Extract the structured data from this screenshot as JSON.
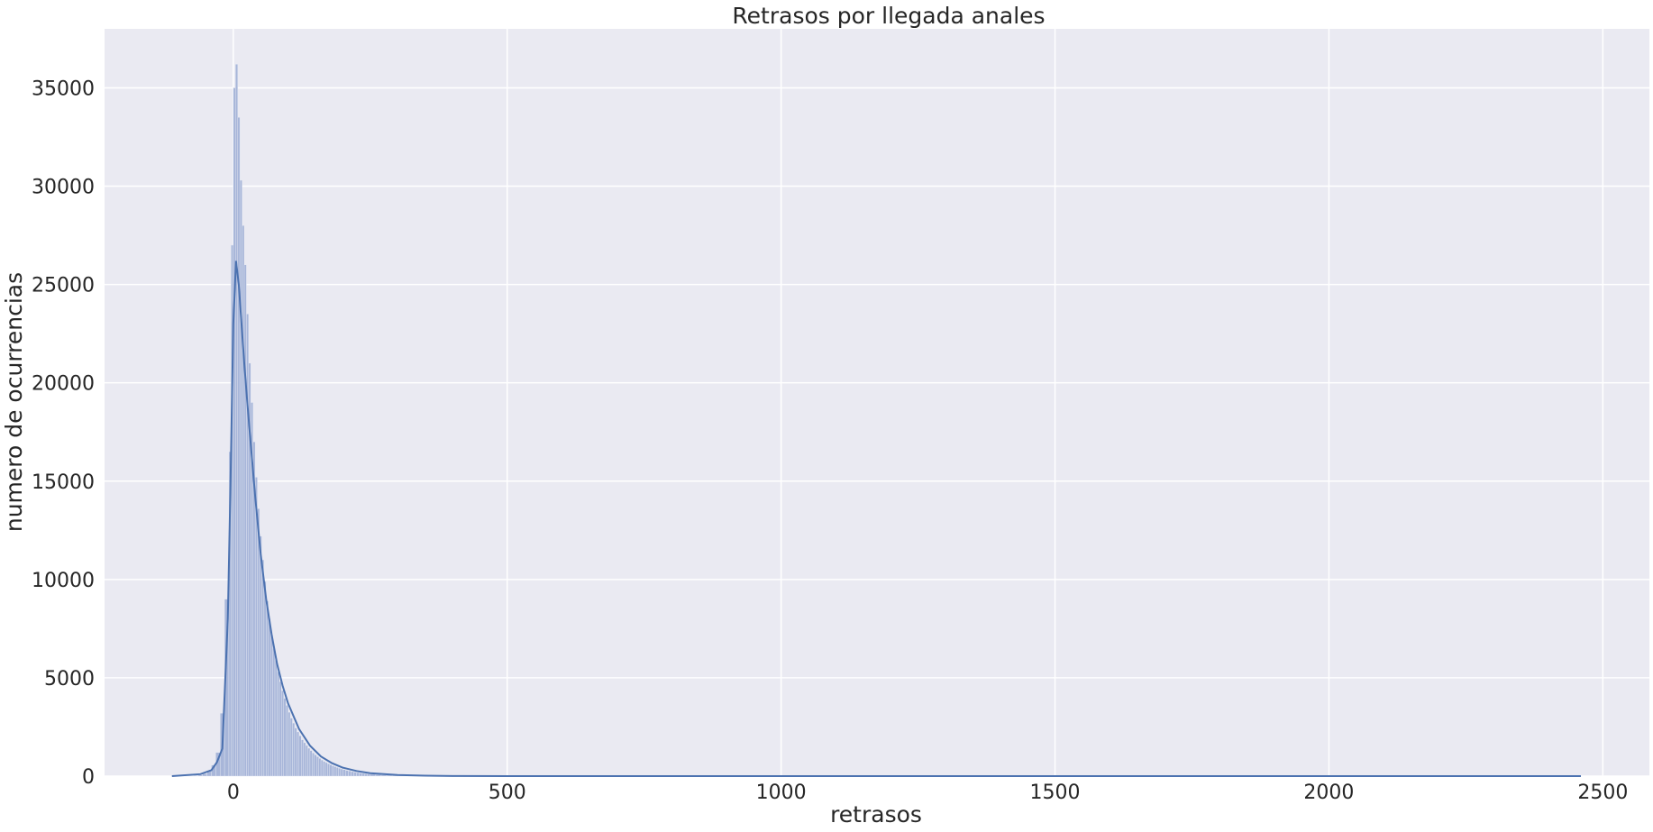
{
  "chart_data": {
    "type": "histogram",
    "title": "Retrasos por llegada anales",
    "xlabel": "retrasos",
    "ylabel": "numero de ocurrencias",
    "xlim": [
      -235,
      2585
    ],
    "ylim": [
      0,
      38000
    ],
    "xticks": [
      0,
      500,
      1000,
      1500,
      2000,
      2500
    ],
    "yticks": [
      0,
      5000,
      10000,
      15000,
      20000,
      25000,
      30000,
      35000
    ],
    "grid": true,
    "legend": "none",
    "colors": {
      "background": "#eaeaf2",
      "grid": "#ffffff",
      "bars": "#a8b6d9",
      "bar_edge": "#e6eaf4",
      "kde": "#4c72b0"
    },
    "bins": {
      "x": [
        -112,
        -104,
        -96,
        -88,
        -80,
        -72,
        -64,
        -56,
        -48,
        -40,
        -32,
        -24,
        -16,
        -8,
        -4,
        0,
        4,
        8,
        12,
        16,
        20,
        24,
        28,
        32,
        36,
        40,
        44,
        48,
        52,
        56,
        60,
        64,
        68,
        72,
        76,
        80,
        84,
        88,
        92,
        96,
        100,
        104,
        108,
        112,
        116,
        120,
        124,
        128,
        132,
        136,
        140,
        144,
        148,
        152,
        156,
        160,
        164,
        168,
        172,
        176,
        180,
        184,
        188,
        192,
        196,
        200,
        205,
        210,
        215,
        220,
        225,
        230,
        235,
        240,
        245,
        250,
        260,
        270,
        280,
        290,
        300,
        320,
        340,
        360,
        380,
        400,
        430,
        460,
        500,
        560,
        640
      ],
      "counts": [
        2,
        3,
        5,
        8,
        15,
        30,
        60,
        120,
        260,
        560,
        1200,
        3200,
        9000,
        16500,
        27000,
        35000,
        36200,
        33500,
        30300,
        28000,
        26000,
        23500,
        21000,
        19000,
        17000,
        15200,
        13600,
        12200,
        11000,
        9900,
        8900,
        8000,
        7200,
        6500,
        5900,
        5300,
        4800,
        4350,
        3950,
        3600,
        3250,
        2950,
        2700,
        2450,
        2250,
        2050,
        1850,
        1700,
        1560,
        1420,
        1300,
        1180,
        1080,
        990,
        900,
        820,
        750,
        690,
        630,
        575,
        525,
        480,
        440,
        400,
        365,
        330,
        290,
        260,
        230,
        205,
        180,
        160,
        142,
        126,
        112,
        100,
        80,
        64,
        51,
        41,
        33,
        20,
        12,
        8,
        5,
        3,
        2,
        1,
        1,
        1,
        1
      ]
    },
    "kde": {
      "x": [
        -112,
        -60,
        -40,
        -30,
        -20,
        -10,
        -5,
        0,
        5,
        10,
        15,
        20,
        25,
        30,
        40,
        50,
        60,
        70,
        80,
        90,
        100,
        120,
        140,
        160,
        180,
        200,
        225,
        250,
        300,
        350,
        400,
        500,
        700,
        1000,
        1500,
        2000,
        2460
      ],
      "y": [
        0,
        100,
        300,
        700,
        1400,
        8000,
        15000,
        23000,
        26200,
        25000,
        23000,
        21000,
        19200,
        17500,
        14200,
        11300,
        9000,
        7200,
        5700,
        4600,
        3700,
        2400,
        1550,
        1000,
        660,
        430,
        260,
        150,
        55,
        20,
        8,
        2,
        0,
        0,
        0,
        0,
        0
      ]
    }
  }
}
